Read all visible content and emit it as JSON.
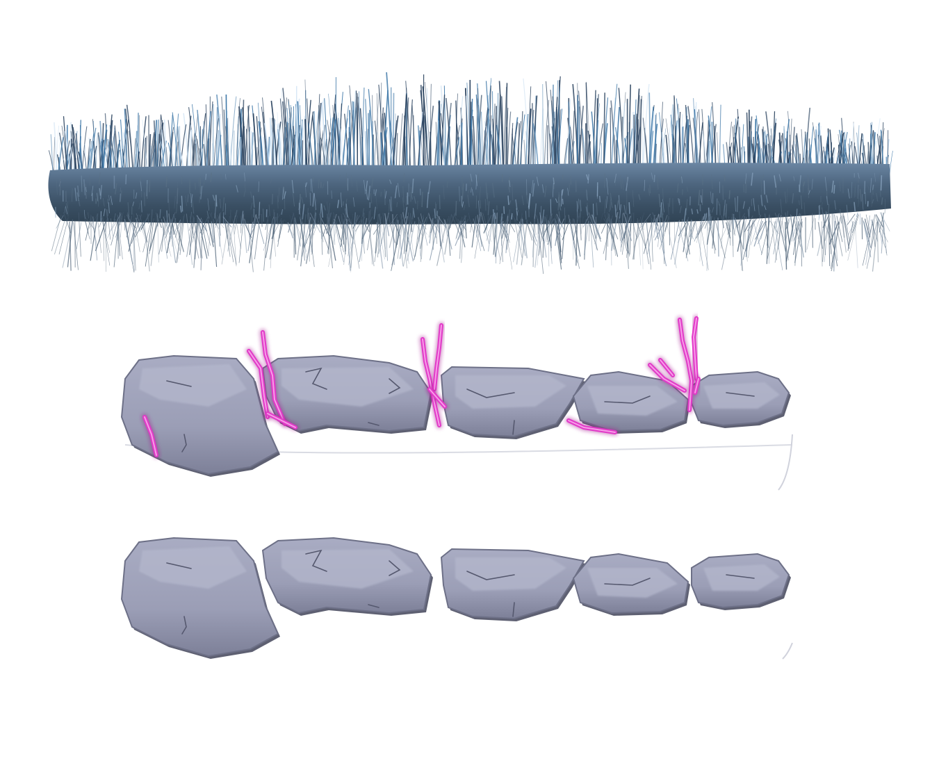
{
  "canvas": {
    "background": "#ffffff"
  },
  "assets": [
    {
      "name": "grass-strip",
      "colors": {
        "base": "#3e5468",
        "mid": "#5a7186",
        "light": "#8ea9c4",
        "blade_dark": "#2c4460",
        "blade_blue": "#3f78a8",
        "blade_highlight": "#cfe2f3"
      }
    },
    {
      "name": "stone-row-with-crystals",
      "stone_count": 5,
      "crystal_count": 5,
      "colors": {
        "stone_fill": "#9ea1ba",
        "stone_light": "#b4b7cc",
        "stone_shadow": "#6d7087",
        "stone_dark": "#4d4f63",
        "crack": "#55586e",
        "crystal": "#e23ac8",
        "crystal_light": "#f9a6ec",
        "crystal_dark": "#a3168e"
      }
    },
    {
      "name": "stone-row-plain",
      "stone_count": 5,
      "colors": {
        "stone_fill": "#9ea1ba",
        "stone_light": "#b4b7cc",
        "stone_shadow": "#6d7087",
        "stone_dark": "#4d4f63",
        "crack": "#55586e"
      }
    }
  ]
}
